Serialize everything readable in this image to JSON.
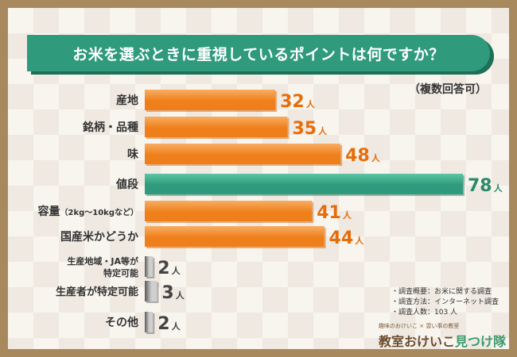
{
  "title": "お米を選ぶときに重視しているポイントは何ですか？",
  "note": "（複数回答可）",
  "unit": "人",
  "colors": {
    "orange": "#ef7f1a",
    "orange_light": "#f8ad63",
    "green": "#2f9a7c",
    "green_light": "#5cc4a2",
    "gray": "#9a9a9a",
    "value_orange": "#e66d0a",
    "value_green": "#2b8a6c",
    "value_gray": "#444444"
  },
  "chart_data": {
    "type": "bar",
    "orientation": "horizontal",
    "categories": [
      "産地",
      "銘柄・品種",
      "味",
      "値段",
      "容量",
      "国産米かどうか",
      "生産地域・JA等が特定可能",
      "生産者が特定可能",
      "その他"
    ],
    "category_display": [
      {
        "main": "産地",
        "sub": ""
      },
      {
        "main": "銘柄・品種",
        "sub": ""
      },
      {
        "main": "味",
        "sub": ""
      },
      {
        "main": "値段",
        "sub": ""
      },
      {
        "main": "容量",
        "sub": "（2kg〜10kgなど）"
      },
      {
        "main": "国産米かどうか",
        "sub": ""
      },
      {
        "main": "生産地域・JA等が",
        "sub": "特定可能"
      },
      {
        "main": "生産者が特定可能",
        "sub": ""
      },
      {
        "main": "その他",
        "sub": ""
      }
    ],
    "values": [
      32,
      35,
      48,
      78,
      41,
      44,
      2,
      3,
      2
    ],
    "highlight_index": 3,
    "xlim": [
      0,
      78
    ]
  },
  "survey_notes": [
    "・調査概要：お米に関する調査",
    "・調査方法：インターネット調査",
    "・調査人数：103 人"
  ],
  "brand": {
    "tagline": "趣味のおけいこ × 習い事の教室",
    "name_main": "教室おけいこ",
    "name_accent": "見つけ隊"
  }
}
